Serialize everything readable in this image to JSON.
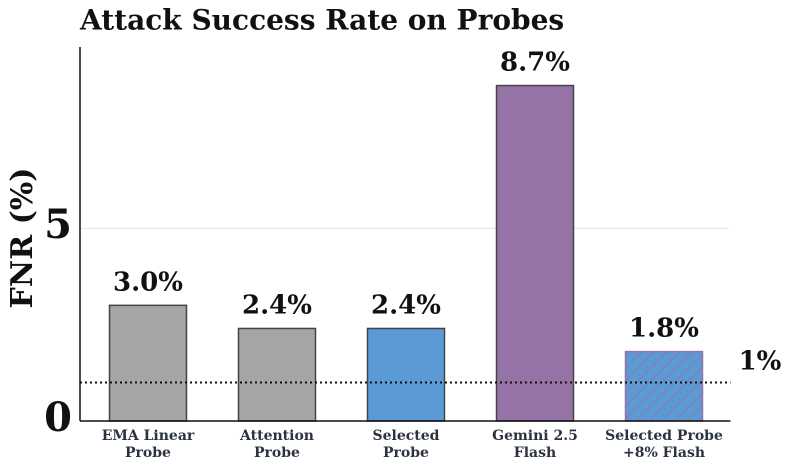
{
  "chart_data": {
    "type": "bar",
    "title": "Attack Success Rate on Probes",
    "y_label": "FNR (%)",
    "categories": [
      "EMA Linear\nProbe",
      "Attention\nProbe",
      "Selected\nProbe",
      "Gemini 2.5\nFlash",
      "Selected Probe\n+8% Flash"
    ],
    "values": [
      3.0,
      2.4,
      2.4,
      8.7,
      1.8
    ],
    "value_labels": [
      "3.0%",
      "2.4%",
      "2.4%",
      "8.7%",
      "1.8%"
    ],
    "colors": [
      "#a5a5a5",
      "#a5a5a5",
      "#5b9bd5",
      "#9673a6",
      "#5b9bd5"
    ],
    "edge_colors": [
      "#444444",
      "#444444",
      "#444444",
      "#444444",
      "#9673a6"
    ],
    "hatched": [
      false,
      false,
      false,
      false,
      true
    ],
    "reference_line": {
      "value": 1,
      "label": "1%"
    },
    "ylim": [
      0,
      9.7
    ],
    "yticks": [
      0,
      5
    ],
    "grid": true
  }
}
